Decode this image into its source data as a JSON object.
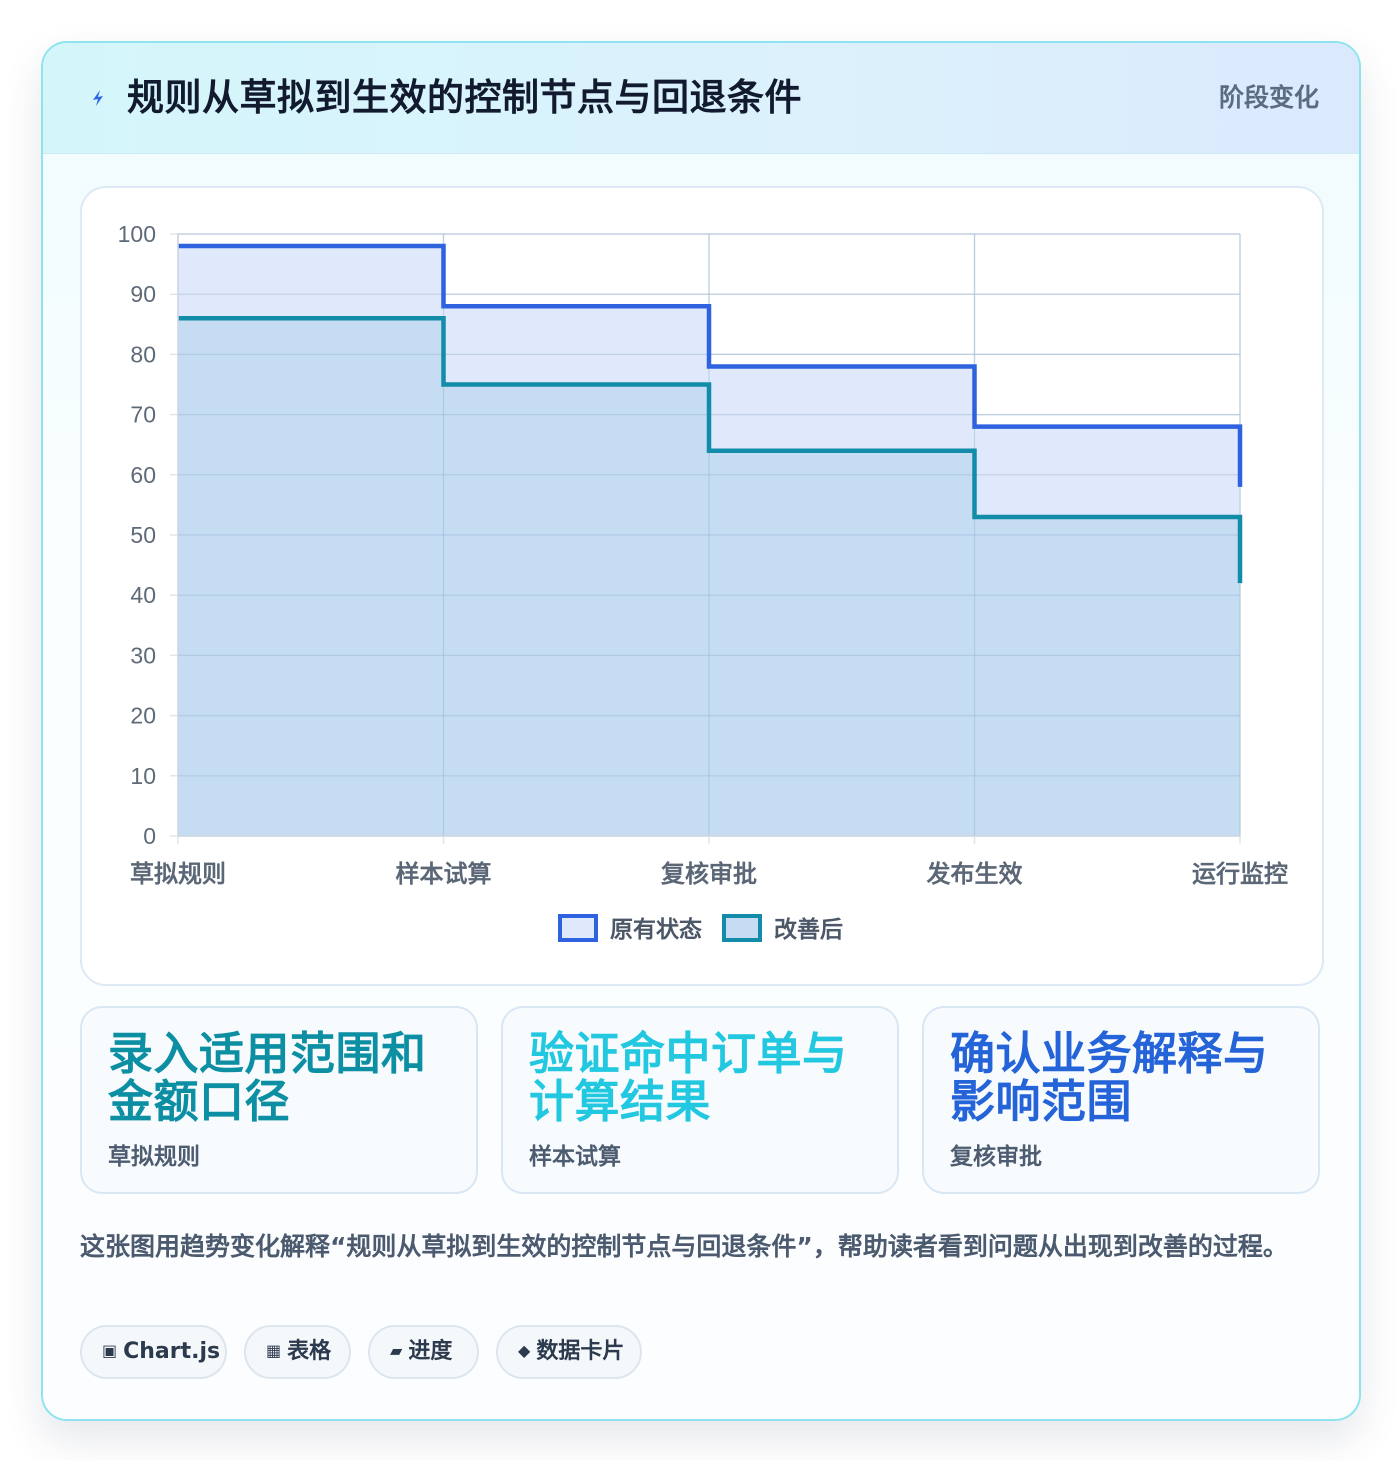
{
  "header": {
    "title": "规则从草拟到生效的控制节点与回退条件",
    "badge": "阶段变化",
    "icon": "lightning-icon"
  },
  "chart_data": {
    "type": "line",
    "stepped": true,
    "filled": true,
    "categories": [
      "草拟规则",
      "样本试算",
      "复核审批",
      "发布生效",
      "运行监控"
    ],
    "series": [
      {
        "name": "原有状态",
        "values": [
          98,
          88,
          78,
          68,
          58
        ],
        "color": "#2f62df",
        "fill": "#e0e8fb"
      },
      {
        "name": "改善后",
        "values": [
          86,
          75,
          64,
          53,
          42
        ],
        "color": "#138ca9",
        "fill": "#c5dcf2"
      }
    ],
    "ylim": [
      0,
      100
    ],
    "yticks": [
      "0",
      "10",
      "20",
      "30",
      "40",
      "50",
      "60",
      "70",
      "80",
      "90",
      "100"
    ],
    "grid": true,
    "legend": "bottom"
  },
  "kpis": [
    {
      "value": "录入适用范围和金额口径",
      "label": "草拟规则",
      "color": "#0d8fa3"
    },
    {
      "value": "验证命中订单与计算结果",
      "label": "样本试算",
      "color": "#22c7e0"
    },
    {
      "value": "确认业务解释与影响范围",
      "label": "复核审批",
      "color": "#2463d8"
    }
  ],
  "description": "这张图用趋势变化解释“规则从草拟到生效的控制节点与回退条件”，帮助读者看到问题从出现到改善的过程。",
  "tags": [
    {
      "icon": "▣",
      "label": "Chart.js"
    },
    {
      "icon": "▦",
      "label": "表格"
    },
    {
      "icon": "▰",
      "label": "进度"
    },
    {
      "icon": "◆",
      "label": "数据卡片"
    }
  ]
}
